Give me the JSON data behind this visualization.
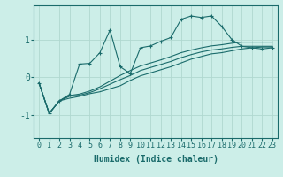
{
  "xlabel": "Humidex (Indice chaleur)",
  "ylabel": "",
  "background_color": "#cceee8",
  "line_color": "#1a6b6b",
  "xlim": [
    -0.5,
    23.5
  ],
  "ylim": [
    -1.6,
    1.9
  ],
  "yticks": [
    -1,
    0,
    1
  ],
  "xticks": [
    0,
    1,
    2,
    3,
    4,
    5,
    6,
    7,
    8,
    9,
    10,
    11,
    12,
    13,
    14,
    15,
    16,
    17,
    18,
    19,
    20,
    21,
    22,
    23
  ],
  "series1_x": [
    0,
    1,
    2,
    3,
    4,
    5,
    6,
    7,
    8,
    9,
    10,
    11,
    12,
    13,
    14,
    15,
    16,
    17,
    18,
    19,
    20,
    21,
    22,
    23
  ],
  "series1_y": [
    -0.15,
    -0.95,
    -0.62,
    -0.45,
    0.35,
    0.37,
    0.65,
    1.25,
    0.28,
    0.1,
    0.78,
    0.83,
    0.95,
    1.05,
    1.53,
    1.62,
    1.58,
    1.62,
    1.35,
    1.0,
    0.82,
    0.78,
    0.75,
    0.78
  ],
  "series2_x": [
    0,
    1,
    2,
    3,
    4,
    5,
    6,
    7,
    8,
    9,
    10,
    11,
    12,
    13,
    14,
    15,
    16,
    17,
    18,
    19,
    20,
    21,
    22,
    23
  ],
  "series2_y": [
    -0.15,
    -0.95,
    -0.62,
    -0.55,
    -0.5,
    -0.43,
    -0.38,
    -0.3,
    -0.22,
    -0.08,
    0.04,
    0.12,
    0.2,
    0.28,
    0.38,
    0.48,
    0.55,
    0.62,
    0.65,
    0.7,
    0.75,
    0.78,
    0.8,
    0.8
  ],
  "series3_x": [
    0,
    1,
    2,
    3,
    4,
    5,
    6,
    7,
    8,
    9,
    10,
    11,
    12,
    13,
    14,
    15,
    16,
    17,
    18,
    19,
    20,
    21,
    22,
    23
  ],
  "series3_y": [
    -0.15,
    -0.95,
    -0.62,
    -0.5,
    -0.47,
    -0.4,
    -0.3,
    -0.18,
    -0.06,
    0.05,
    0.18,
    0.26,
    0.34,
    0.42,
    0.52,
    0.6,
    0.67,
    0.72,
    0.75,
    0.79,
    0.82,
    0.82,
    0.82,
    0.82
  ],
  "series4_x": [
    0,
    1,
    2,
    3,
    4,
    5,
    6,
    7,
    8,
    9,
    10,
    11,
    12,
    13,
    14,
    15,
    16,
    17,
    18,
    19,
    20,
    21,
    22,
    23
  ],
  "series4_y": [
    -0.15,
    -0.95,
    -0.62,
    -0.48,
    -0.44,
    -0.36,
    -0.25,
    -0.1,
    0.05,
    0.18,
    0.3,
    0.38,
    0.46,
    0.55,
    0.65,
    0.72,
    0.78,
    0.83,
    0.86,
    0.9,
    0.93,
    0.93,
    0.93,
    0.93
  ],
  "grid_color": "#b0d8d0",
  "tick_fontsize": 6,
  "xlabel_fontsize": 7
}
